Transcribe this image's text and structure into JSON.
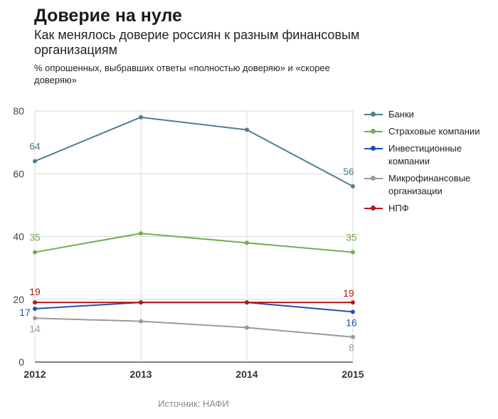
{
  "header": {
    "title": "Доверие на нуле",
    "subtitle": "Как менялось доверие россиян к разным финансовым организациям",
    "note": "% опрошенных, выбравших ответы «полностью доверяю» и «скорее доверяю»"
  },
  "footer": {
    "source": "Источник: НАФИ"
  },
  "chart_data": {
    "type": "line",
    "title": "Доверие на нуле",
    "subtitle": "Как менялось доверие россиян к разным финансовым организациям",
    "ylabel": "% опрошенных, выбравших ответы «полностью доверяю» и «скорее доверяю»",
    "xlabel": "",
    "x": [
      "2012",
      "2013",
      "2014",
      "2015"
    ],
    "ylim": [
      0,
      80
    ],
    "yticks": [
      0,
      20,
      40,
      60,
      80
    ],
    "grid": true,
    "legend_position": "right",
    "series": [
      {
        "name": "Банки",
        "color": "#4f7f8f",
        "values": [
          64,
          78,
          74,
          56
        ],
        "labels": [
          "64",
          "",
          "",
          "56"
        ]
      },
      {
        "name": "Страховые компании",
        "color": "#72ad4f",
        "values": [
          35,
          41,
          38,
          35
        ],
        "labels": [
          "35",
          "",
          "",
          "35"
        ]
      },
      {
        "name": "Инвестиционные компании",
        "color": "#1f4fb4",
        "values": [
          17,
          19,
          19,
          16
        ],
        "labels": [
          "17",
          "",
          "",
          "16"
        ]
      },
      {
        "name": "Микрофинансовые организации",
        "color": "#9a9a9a",
        "values": [
          14,
          13,
          11,
          8
        ],
        "labels": [
          "14",
          "",
          "",
          "8"
        ]
      },
      {
        "name": "НПФ",
        "color": "#b01a1a",
        "values": [
          19,
          19,
          19,
          19
        ],
        "labels": [
          "19",
          "",
          "",
          "19"
        ]
      }
    ]
  }
}
